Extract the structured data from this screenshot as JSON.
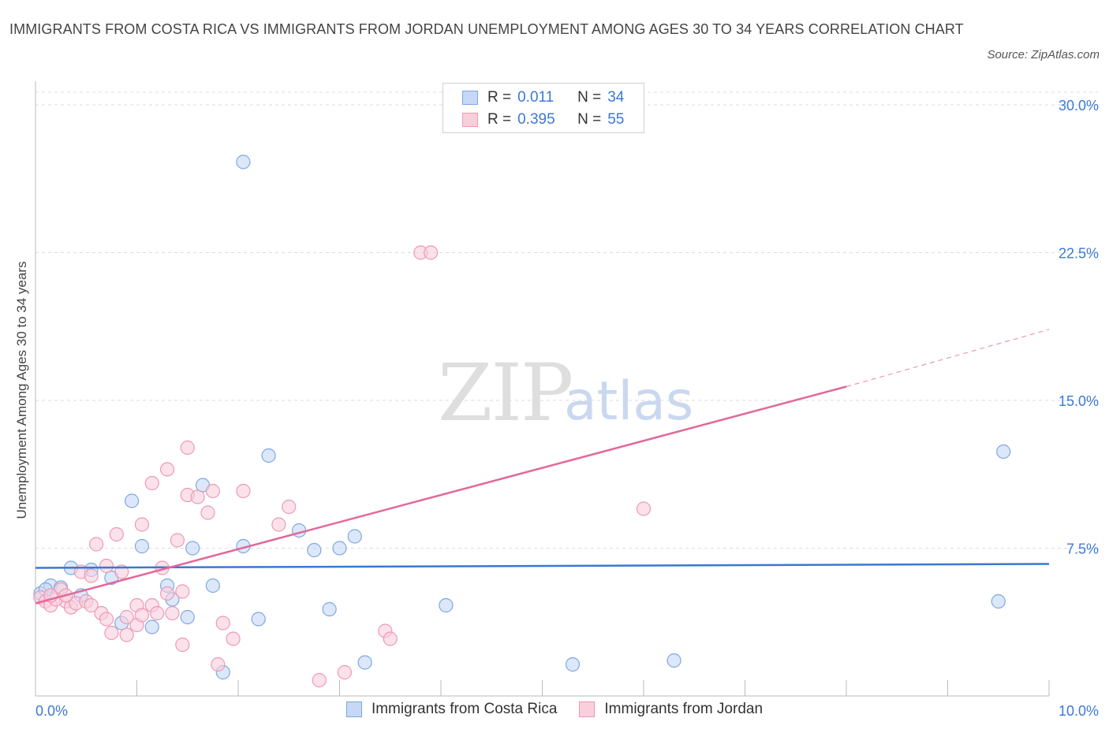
{
  "header": {
    "title": "IMMIGRANTS FROM COSTA RICA VS IMMIGRANTS FROM JORDAN UNEMPLOYMENT AMONG AGES 30 TO 34 YEARS CORRELATION CHART",
    "source": "Source: ZipAtlas.com"
  },
  "watermark": {
    "zip": "ZIP",
    "atlas": "atlas"
  },
  "legend": {
    "r_label": "R =",
    "n_label": "N =",
    "rows": [
      {
        "r": "0.011",
        "n": "34"
      },
      {
        "r": "0.395",
        "n": "55"
      }
    ]
  },
  "colors": {
    "blue_fill": "#c5d8f5",
    "blue_stroke": "#7da7e0",
    "blue_line": "#3a78d0",
    "pink_fill": "#f9cfdc",
    "pink_stroke": "#ee98b3",
    "pink_line": "#e2689a",
    "axis_text": "#3b78d8",
    "grid": "#dcdcdc"
  },
  "chart_data": {
    "type": "scatter",
    "title": "IMMIGRANTS FROM COSTA RICA VS IMMIGRANTS FROM JORDAN UNEMPLOYMENT AMONG AGES 30 TO 34 YEARS CORRELATION CHART",
    "xlabel": "",
    "ylabel": "Unemployment Among Ages 30 to 34 years",
    "xlim": [
      0,
      10
    ],
    "ylim": [
      0,
      30
    ],
    "x_tick_labels": [
      "0.0%",
      "10.0%"
    ],
    "y_tick_values": [
      7.5,
      15.0,
      22.5,
      30.0
    ],
    "y_tick_labels": [
      "7.5%",
      "15.0%",
      "22.5%",
      "30.0%"
    ],
    "grid": true,
    "legend_position": "top-center",
    "series": [
      {
        "name": "Immigrants from Costa Rica",
        "color": "blue",
        "R": 0.011,
        "N": 34,
        "trend": {
          "x": [
            0,
            10
          ],
          "y": [
            6.5,
            6.7
          ],
          "dashed_extension": null
        },
        "points": [
          [
            0.05,
            5.2
          ],
          [
            0.15,
            5.6
          ],
          [
            0.25,
            5.5
          ],
          [
            0.35,
            6.5
          ],
          [
            0.45,
            5.1
          ],
          [
            0.55,
            6.4
          ],
          [
            0.75,
            6.0
          ],
          [
            0.85,
            3.7
          ],
          [
            0.95,
            9.9
          ],
          [
            1.05,
            7.6
          ],
          [
            1.15,
            3.5
          ],
          [
            1.3,
            5.6
          ],
          [
            1.35,
            4.9
          ],
          [
            1.5,
            4.0
          ],
          [
            1.55,
            7.5
          ],
          [
            1.65,
            10.7
          ],
          [
            1.75,
            5.6
          ],
          [
            1.85,
            1.2
          ],
          [
            2.05,
            7.6
          ],
          [
            2.05,
            27.1
          ],
          [
            2.2,
            3.9
          ],
          [
            2.3,
            12.2
          ],
          [
            2.6,
            8.4
          ],
          [
            2.75,
            7.4
          ],
          [
            2.9,
            4.4
          ],
          [
            3.0,
            7.5
          ],
          [
            3.15,
            8.1
          ],
          [
            3.25,
            1.7
          ],
          [
            4.05,
            4.6
          ],
          [
            5.3,
            1.6
          ],
          [
            6.3,
            1.8
          ],
          [
            9.55,
            12.4
          ],
          [
            9.5,
            4.8
          ],
          [
            0.1,
            5.4
          ]
        ]
      },
      {
        "name": "Immigrants from Jordan",
        "color": "pink",
        "R": 0.395,
        "N": 55,
        "trend": {
          "x": [
            0,
            8.0
          ],
          "y": [
            4.7,
            15.7
          ],
          "dashed_extension": {
            "x": [
              8.0,
              10.0
            ],
            "y": [
              15.7,
              18.6
            ]
          }
        },
        "points": [
          [
            0.05,
            5.0
          ],
          [
            0.1,
            4.8
          ],
          [
            0.15,
            4.6
          ],
          [
            0.25,
            5.4
          ],
          [
            0.3,
            4.8
          ],
          [
            0.35,
            4.5
          ],
          [
            0.4,
            4.7
          ],
          [
            0.45,
            6.3
          ],
          [
            0.5,
            4.8
          ],
          [
            0.55,
            6.1
          ],
          [
            0.6,
            7.7
          ],
          [
            0.65,
            4.2
          ],
          [
            0.7,
            6.6
          ],
          [
            0.7,
            3.9
          ],
          [
            0.75,
            3.2
          ],
          [
            0.8,
            8.2
          ],
          [
            0.85,
            6.3
          ],
          [
            0.9,
            3.1
          ],
          [
            0.9,
            4.0
          ],
          [
            1.0,
            3.6
          ],
          [
            1.0,
            4.6
          ],
          [
            1.05,
            4.1
          ],
          [
            1.05,
            8.7
          ],
          [
            1.15,
            10.8
          ],
          [
            1.15,
            4.6
          ],
          [
            1.2,
            4.2
          ],
          [
            1.25,
            6.5
          ],
          [
            1.3,
            5.2
          ],
          [
            1.3,
            11.5
          ],
          [
            1.35,
            4.2
          ],
          [
            1.4,
            7.9
          ],
          [
            1.45,
            5.3
          ],
          [
            1.45,
            2.6
          ],
          [
            1.5,
            12.6
          ],
          [
            1.5,
            10.2
          ],
          [
            1.6,
            10.1
          ],
          [
            1.7,
            9.3
          ],
          [
            1.75,
            10.4
          ],
          [
            1.8,
            1.6
          ],
          [
            1.85,
            3.7
          ],
          [
            1.95,
            2.9
          ],
          [
            2.05,
            10.4
          ],
          [
            2.4,
            8.7
          ],
          [
            2.5,
            9.6
          ],
          [
            2.8,
            0.8
          ],
          [
            3.05,
            1.2
          ],
          [
            3.45,
            3.3
          ],
          [
            3.5,
            2.9
          ],
          [
            3.8,
            22.5
          ],
          [
            3.9,
            22.5
          ],
          [
            6.0,
            9.5
          ],
          [
            0.2,
            4.9
          ],
          [
            0.3,
            5.1
          ],
          [
            0.55,
            4.6
          ],
          [
            0.15,
            5.1
          ]
        ]
      }
    ],
    "x_minor_ticks": [
      0,
      1,
      2,
      3,
      4,
      5,
      6,
      7,
      8,
      9,
      10
    ]
  },
  "bottom_legend": [
    {
      "label": "Immigrants from Costa Rica"
    },
    {
      "label": "Immigrants from Jordan"
    }
  ]
}
